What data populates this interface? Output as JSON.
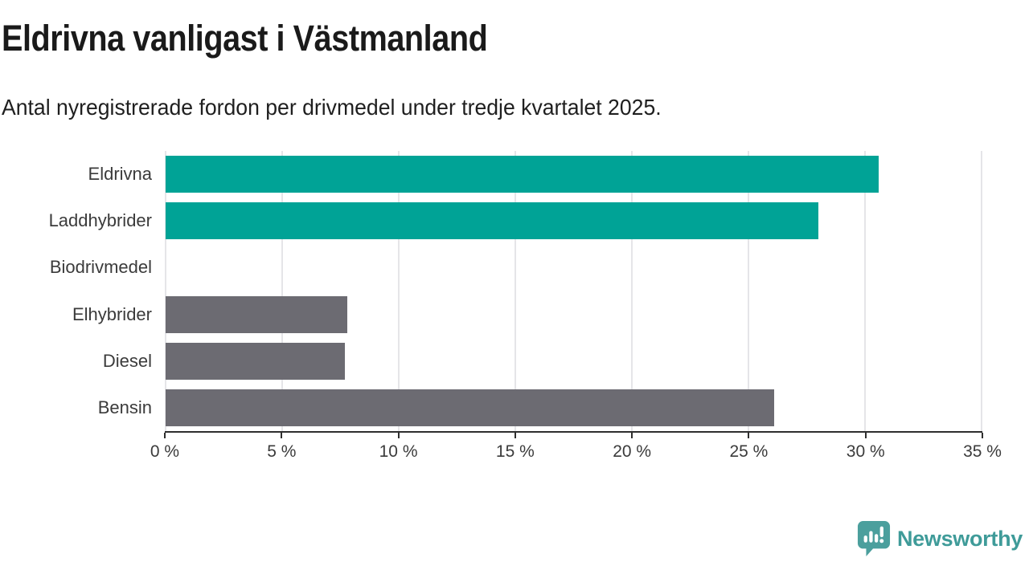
{
  "header": {
    "title": "Eldrivna vanligast i Västmanland",
    "subtitle": "Antal nyregistrerade fordon per drivmedel under tredje kvartalet 2025."
  },
  "chart_data": {
    "type": "bar",
    "orientation": "horizontal",
    "title": "Eldrivna vanligast i Västmanland",
    "subtitle": "Antal nyregistrerade fordon per drivmedel under tredje kvartalet 2025.",
    "categories": [
      "Eldrivna",
      "Laddhybrider",
      "Biodrivmedel",
      "Elhybrider",
      "Diesel",
      "Bensin"
    ],
    "values": [
      30.6,
      28.0,
      0,
      7.8,
      7.7,
      26.1
    ],
    "unit": "%",
    "xlim": [
      0,
      35
    ],
    "x_ticks": [
      0,
      5,
      10,
      15,
      20,
      25,
      30,
      35
    ],
    "x_tick_labels": [
      "0 %",
      "5 %",
      "10 %",
      "15 %",
      "20 %",
      "25 %",
      "30 %",
      "35 %"
    ],
    "grid": "vertical",
    "bar_colors": [
      "#00a396",
      "#00a396",
      "#6c6b72",
      "#6c6b72",
      "#6c6b72",
      "#6c6b72"
    ],
    "highlight_color": "#00a396",
    "default_color": "#6c6b72",
    "gridline_color": "#e5e5e8",
    "axis_color": "#2e2e2e"
  },
  "branding": {
    "logo_text": "Newsworthy",
    "logo_icon": "bar-chart-speech-bubble-icon",
    "logo_icon_color": "#4b9f9d",
    "logo_text_color": "#3f9b99"
  }
}
